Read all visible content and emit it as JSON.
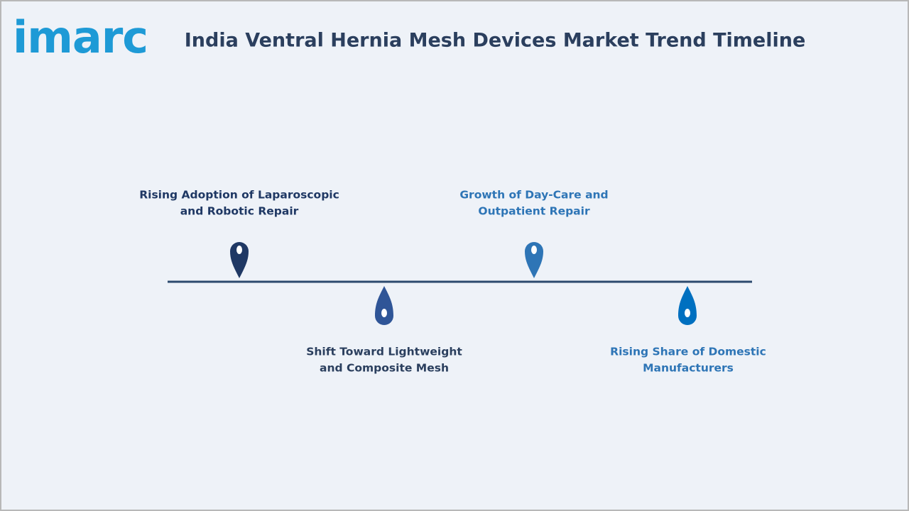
{
  "header": {
    "logo": "imarc",
    "title": "India Ventral Hernia Mesh Devices Market Trend Timeline"
  },
  "timeline": {
    "items": [
      {
        "lines": [
          "Rising Adoption of Laparoscopic",
          "and Robotic Repair"
        ]
      },
      {
        "lines": [
          "Shift Toward Lightweight",
          "and Composite Mesh"
        ]
      },
      {
        "lines": [
          "Growth of Day-Care and",
          "Outpatient Repair"
        ]
      },
      {
        "lines": [
          "Rising Share of Domestic",
          "Manufacturers"
        ]
      }
    ]
  }
}
